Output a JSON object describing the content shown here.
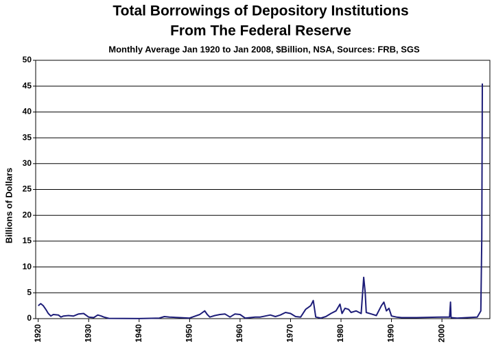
{
  "chart_data": {
    "type": "line",
    "title": [
      "Total Borrowings of Depository Institutions",
      "From The Federal Reserve"
    ],
    "subtitle": "Monthly Average Jan 1920 to Jan 2008, $Billion, NSA, Sources: FRB, SGS",
    "y_label": "Billions of Dollars",
    "xlim": [
      1919.5,
      2009.5
    ],
    "ylim": [
      0,
      50
    ],
    "xticks": [
      1920,
      1930,
      1940,
      1950,
      1960,
      1970,
      1980,
      1990,
      2000
    ],
    "yticks": [
      0,
      5,
      10,
      15,
      20,
      25,
      30,
      35,
      40,
      45,
      50
    ],
    "grid": true,
    "series": [
      {
        "name": "Total Borrowings",
        "color": "#1c1c78",
        "x": [
          1920,
          1920.5,
          1921,
          1921.5,
          1922,
          1922.5,
          1923,
          1924,
          1924.5,
          1925,
          1926,
          1927,
          1928,
          1929,
          1930,
          1931,
          1931.8,
          1932.5,
          1933,
          1934,
          1940,
          1944,
          1945,
          1946,
          1948,
          1950,
          1952,
          1953,
          1953.5,
          1954,
          1955,
          1956,
          1957,
          1958,
          1959,
          1960,
          1961,
          1963,
          1964,
          1965,
          1966,
          1967,
          1968,
          1969,
          1970,
          1971,
          1972,
          1973,
          1974,
          1974.5,
          1975,
          1976,
          1977,
          1978,
          1979,
          1979.8,
          1980.2,
          1980.8,
          1981.5,
          1982,
          1983,
          1984,
          1984.5,
          1984.8,
          1985,
          1986,
          1987,
          1988,
          1988.5,
          1989,
          1989.5,
          1990,
          1991,
          1992,
          1995,
          2000,
          2001.5,
          2001.7,
          2001.8,
          2003,
          2007,
          2007.7,
          2007.9,
          2008
        ],
        "values": [
          2.5,
          2.9,
          2.5,
          1.8,
          1.0,
          0.5,
          0.8,
          0.7,
          0.3,
          0.5,
          0.6,
          0.5,
          0.9,
          1.0,
          0.3,
          0.2,
          0.7,
          0.5,
          0.3,
          0.05,
          0.01,
          0.1,
          0.4,
          0.3,
          0.2,
          0.1,
          0.8,
          1.5,
          0.8,
          0.3,
          0.6,
          0.8,
          0.9,
          0.3,
          0.9,
          0.8,
          0.1,
          0.3,
          0.3,
          0.5,
          0.7,
          0.4,
          0.7,
          1.2,
          1.0,
          0.4,
          0.3,
          1.8,
          2.5,
          3.5,
          0.3,
          0.1,
          0.4,
          1.0,
          1.5,
          2.8,
          1.0,
          2.0,
          1.8,
          1.2,
          1.5,
          1.0,
          8.0,
          5.0,
          1.2,
          0.9,
          0.6,
          2.5,
          3.2,
          1.5,
          2.0,
          0.5,
          0.3,
          0.2,
          0.2,
          0.3,
          0.3,
          3.2,
          0.2,
          0.1,
          0.3,
          1.5,
          15.5,
          45.5
        ]
      }
    ]
  }
}
